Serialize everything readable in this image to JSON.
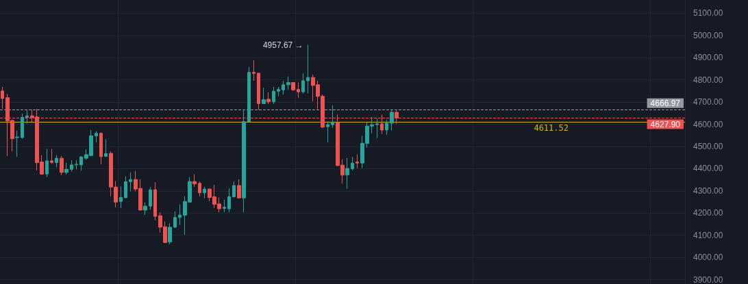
{
  "chart_data": {
    "type": "candlestick",
    "categories": [
      null,
      null,
      null,
      null,
      null,
      null,
      null,
      null,
      null,
      null,
      null,
      null,
      null,
      null,
      null,
      null,
      null,
      null,
      null,
      null,
      null,
      null,
      null,
      null,
      null,
      null,
      null,
      null,
      null,
      null,
      null,
      null,
      null,
      null,
      null,
      null,
      null,
      null,
      null,
      null,
      null,
      null,
      null,
      null,
      null,
      null,
      null,
      null,
      null,
      null,
      null,
      null,
      null,
      null,
      null,
      null,
      null,
      null,
      null,
      null,
      null,
      null,
      null,
      null,
      null,
      null,
      null,
      null,
      null,
      null,
      null,
      null,
      null,
      null,
      null,
      null,
      null,
      null,
      null,
      null,
      null,
      null,
      null,
      null,
      null,
      null,
      null,
      null,
      null,
      null,
      null,
      null,
      null,
      null,
      null,
      null,
      null,
      null,
      null,
      null,
      null,
      null,
      null,
      null,
      null,
      null,
      null,
      null,
      null,
      null,
      null,
      null,
      null,
      null,
      null,
      null,
      null,
      null,
      null,
      null,
      null,
      null,
      null,
      null,
      null,
      null,
      null,
      null,
      null,
      null,
      null,
      null,
      null,
      null,
      null,
      null,
      null,
      null,
      null
    ],
    "ohlc": [
      [
        4750,
        4769,
        4670,
        4716
      ],
      [
        4720,
        4737,
        4457,
        4615
      ],
      [
        4617,
        4620,
        4478,
        4535
      ],
      [
        4540,
        4571,
        4453,
        4543
      ],
      [
        4540,
        4648,
        4535,
        4631
      ],
      [
        4631,
        4662,
        4603,
        4638
      ],
      [
        4638,
        4665,
        4610,
        4631
      ],
      [
        4633,
        4669,
        4392,
        4427
      ],
      [
        4430,
        4461,
        4373,
        4375
      ],
      [
        4376,
        4489,
        4362,
        4435
      ],
      [
        4435,
        4489,
        4422,
        4428
      ],
      [
        4427,
        4461,
        4406,
        4447
      ],
      [
        4447,
        4456,
        4370,
        4383
      ],
      [
        4383,
        4427,
        4373,
        4397
      ],
      [
        4397,
        4438,
        4386,
        4417
      ],
      [
        4417,
        4438,
        4397,
        4420
      ],
      [
        4417,
        4456,
        4391,
        4453
      ],
      [
        4447,
        4487,
        4440,
        4463
      ],
      [
        4459,
        4574,
        4456,
        4548
      ],
      [
        4547,
        4569,
        4518,
        4559
      ],
      [
        4559,
        4564,
        4420,
        4454
      ],
      [
        4455,
        4533,
        4454,
        4468
      ],
      [
        4469,
        4478,
        4275,
        4317
      ],
      [
        4317,
        4344,
        4226,
        4249
      ],
      [
        4252,
        4320,
        4222,
        4270
      ],
      [
        4269,
        4366,
        4267,
        4341
      ],
      [
        4341,
        4383,
        4298,
        4351
      ],
      [
        4351,
        4390,
        4298,
        4308
      ],
      [
        4311,
        4352,
        4211,
        4213
      ],
      [
        4213,
        4247,
        4191,
        4231
      ],
      [
        4231,
        4317,
        4215,
        4304
      ],
      [
        4305,
        4339,
        4167,
        4185
      ],
      [
        4188,
        4203,
        4112,
        4136
      ],
      [
        4138,
        4162,
        4064,
        4067
      ],
      [
        4069,
        4154,
        4059,
        4136
      ],
      [
        4136,
        4208,
        4133,
        4180
      ],
      [
        4180,
        4239,
        4146,
        4191
      ],
      [
        4190,
        4275,
        4102,
        4252
      ],
      [
        4249,
        4362,
        4249,
        4342
      ],
      [
        4342,
        4375,
        4318,
        4331
      ],
      [
        4334,
        4342,
        4275,
        4291
      ],
      [
        4291,
        4318,
        4267,
        4308
      ],
      [
        4308,
        4311,
        4253,
        4270
      ],
      [
        4273,
        4327,
        4222,
        4239
      ],
      [
        4241,
        4270,
        4203,
        4219
      ],
      [
        4221,
        4260,
        4203,
        4226
      ],
      [
        4219,
        4311,
        4203,
        4273
      ],
      [
        4273,
        4342,
        4270,
        4324
      ],
      [
        4324,
        4352,
        4265,
        4268
      ],
      [
        4268,
        4667,
        4203,
        4612
      ],
      [
        4612,
        4858,
        4612,
        4834
      ],
      [
        4834,
        4889,
        4796,
        4829
      ],
      [
        4830,
        4832,
        4665,
        4693
      ],
      [
        4693,
        4765,
        4693,
        4711
      ],
      [
        4713,
        4744,
        4691,
        4701
      ],
      [
        4701,
        4768,
        4691,
        4749
      ],
      [
        4749,
        4768,
        4726,
        4757
      ],
      [
        4755,
        4796,
        4734,
        4778
      ],
      [
        4778,
        4816,
        4755,
        4788
      ],
      [
        4788,
        4790,
        4751,
        4755
      ],
      [
        4757,
        4788,
        4719,
        4746
      ],
      [
        4746,
        4830,
        4739,
        4796
      ],
      [
        4796,
        4957.67,
        4739,
        4811
      ],
      [
        4811,
        4824,
        4703,
        4775
      ],
      [
        4778,
        4796,
        4669,
        4726
      ],
      [
        4726,
        4734,
        4583,
        4587
      ],
      [
        4589,
        4613,
        4518,
        4598
      ],
      [
        4598,
        4685,
        4584,
        4610
      ],
      [
        4608,
        4644,
        4411,
        4414
      ],
      [
        4416,
        4442,
        4332,
        4371
      ],
      [
        4371,
        4448,
        4309,
        4401
      ],
      [
        4399,
        4453,
        4392,
        4425
      ],
      [
        4430,
        4464,
        4402,
        4425
      ],
      [
        4425,
        4548,
        4402,
        4514
      ],
      [
        4514,
        4608,
        4495,
        4592
      ],
      [
        4592,
        4633,
        4559,
        4598
      ],
      [
        4598,
        4626,
        4538,
        4602
      ],
      [
        4602,
        4643,
        4556,
        4574
      ],
      [
        4574,
        4621,
        4552,
        4605
      ],
      [
        4605,
        4664,
        4572,
        4654
      ],
      [
        4654,
        4662,
        4603,
        4627.9
      ],
      null,
      null,
      null,
      null,
      null,
      null,
      null,
      null,
      null,
      null,
      null,
      null,
      null,
      null,
      null,
      null,
      null,
      null,
      null,
      null,
      null,
      null,
      null,
      null,
      null,
      null,
      null,
      null,
      null,
      null,
      null,
      null,
      null,
      null,
      null,
      null,
      null,
      null,
      null,
      null,
      null,
      null,
      null,
      null,
      null,
      null,
      null,
      null,
      null,
      null,
      null,
      null,
      null,
      null,
      null,
      null,
      null,
      null
    ],
    "ylim": [
      3880,
      5160
    ],
    "yticks": [
      {
        "value": 3900,
        "label": "3900.00"
      },
      {
        "value": 4000,
        "label": "4000.00"
      },
      {
        "value": 4100,
        "label": "4100.00"
      },
      {
        "value": 4200,
        "label": "4200.00"
      },
      {
        "value": 4300,
        "label": "4300.00"
      },
      {
        "value": 4400,
        "label": "4400.00"
      },
      {
        "value": 4500,
        "label": "4500.00"
      },
      {
        "value": 4600,
        "label": "4600.00"
      },
      {
        "value": 4700,
        "label": "4700.00"
      },
      {
        "value": 4800,
        "label": "4800.00"
      },
      {
        "value": 4900,
        "label": "4900.00"
      },
      {
        "value": 5000,
        "label": "5000.00"
      },
      {
        "value": 5100,
        "label": "5100.00"
      }
    ],
    "tick_labels": "y",
    "grid": true,
    "ref_lines": [
      {
        "axis": "y",
        "value": 4666.97,
        "label": "4666.97",
        "color": "#9598a1",
        "line_style": "dashed"
      },
      {
        "axis": "y",
        "value": 4627.9,
        "label": "4627.90",
        "color": "#ef5350",
        "line_style": "dashed"
      },
      {
        "axis": "y",
        "value": 4611.52,
        "label": "4611.52",
        "color": "#d4b51e",
        "line_style": "solid"
      }
    ],
    "annotations": [
      "4957.67 →"
    ]
  }
}
